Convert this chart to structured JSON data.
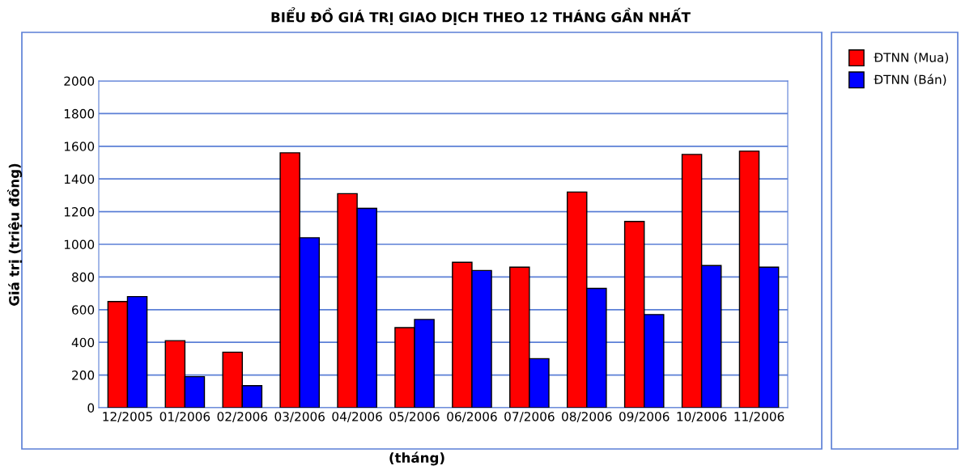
{
  "chart_data": {
    "type": "bar",
    "title": "BIỂU ĐỒ GIÁ TRỊ GIAO DỊCH THEO 12 THÁNG GẦN NHẤT",
    "xlabel": "(tháng)",
    "ylabel": "Giá trị (triệu đồng)",
    "categories": [
      "12/2005",
      "01/2006",
      "02/2006",
      "03/2006",
      "04/2006",
      "05/2006",
      "06/2006",
      "07/2006",
      "08/2006",
      "09/2006",
      "10/2006",
      "11/2006"
    ],
    "series": [
      {
        "name": "ĐTNN (Mua)",
        "color": "#ff0000",
        "values": [
          650,
          410,
          340,
          1560,
          1310,
          490,
          890,
          860,
          1320,
          1140,
          1550,
          1570
        ]
      },
      {
        "name": "ĐTNN (Bán)",
        "color": "#0000ff",
        "values": [
          680,
          190,
          135,
          1040,
          1220,
          540,
          840,
          300,
          730,
          570,
          870,
          860
        ]
      }
    ],
    "ylim": [
      0,
      2000
    ],
    "yticks": [
      0,
      200,
      400,
      600,
      800,
      1000,
      1200,
      1400,
      1600,
      1800,
      2000
    ],
    "grid": "y",
    "legend": "right"
  }
}
